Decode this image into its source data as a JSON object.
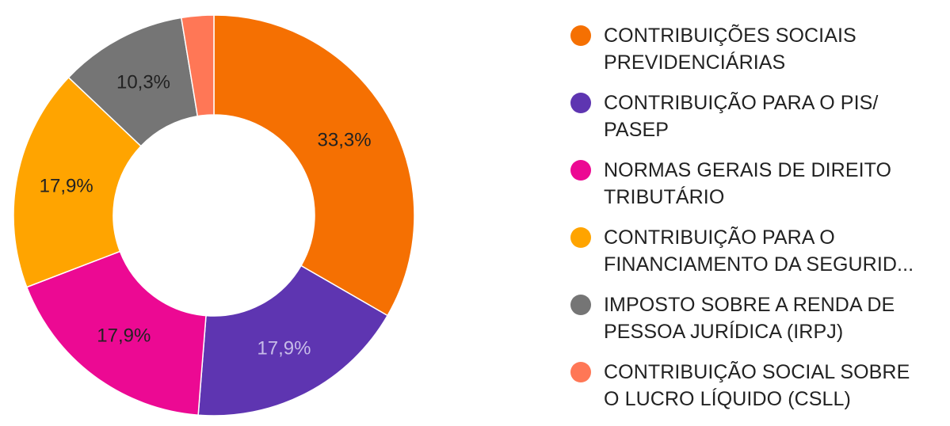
{
  "chart_data": {
    "type": "pie",
    "donut": true,
    "series": [
      {
        "name": "CONTRIBUIÇÕES SOCIAIS\nPREVIDENCIÁRIAS",
        "value": 33.3,
        "label": "33,3%",
        "color": "#F57002",
        "label_color": "#222222"
      },
      {
        "name": "CONTRIBUIÇÃO PARA O PIS/\nPASEP",
        "value": 17.9,
        "label": "17,9%",
        "color": "#5E35B1",
        "label_color": "#C7BCE8"
      },
      {
        "name": "NORMAS GERAIS DE DIREITO\nTRIBUTÁRIO",
        "value": 17.9,
        "label": "17,9%",
        "color": "#EC0993",
        "label_color": "#222222"
      },
      {
        "name": "CONTRIBUIÇÃO PARA O\nFINANCIAMENTO DA SEGURID...",
        "value": 17.9,
        "label": "17,9%",
        "color": "#FFA400",
        "label_color": "#222222"
      },
      {
        "name": "IMPOSTO SOBRE A RENDA DE\nPESSOA JURÍDICA (IRPJ)",
        "value": 10.3,
        "label": "10,3%",
        "color": "#757575",
        "label_color": "#222222"
      },
      {
        "name": "CONTRIBUIÇÃO SOCIAL SOBRE\nO LUCRO LÍQUIDO (CSLL)",
        "value": 2.6,
        "label": "",
        "color": "#FF7756",
        "label_color": "#222222"
      }
    ],
    "legend_position": "right"
  }
}
